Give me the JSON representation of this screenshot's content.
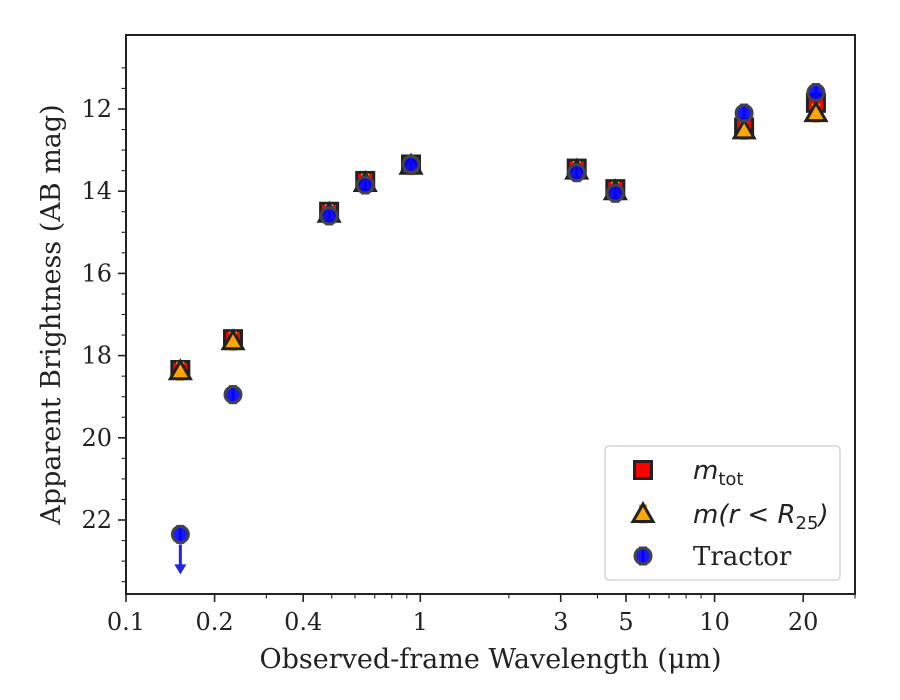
{
  "chart_data": {
    "type": "scatter",
    "xlabel": "Observed-frame Wavelength (μm)",
    "ylabel": "Apparent Brightness (AB mag)",
    "x_scale": "log",
    "xlim": [
      0.1,
      30
    ],
    "ylim": [
      23.8,
      10.2
    ],
    "y_inverted": true,
    "x_ticks": [
      {
        "value": 0.1,
        "label": "0.1"
      },
      {
        "value": 0.2,
        "label": "0.2"
      },
      {
        "value": 0.4,
        "label": "0.4"
      },
      {
        "value": 1,
        "label": "1"
      },
      {
        "value": 3,
        "label": "3"
      },
      {
        "value": 5,
        "label": "5"
      },
      {
        "value": 10,
        "label": "10"
      },
      {
        "value": 20,
        "label": "20"
      }
    ],
    "y_ticks": [
      {
        "value": 12,
        "label": "12"
      },
      {
        "value": 14,
        "label": "14"
      },
      {
        "value": 16,
        "label": "16"
      },
      {
        "value": 18,
        "label": "18"
      },
      {
        "value": 20,
        "label": "20"
      },
      {
        "value": 22,
        "label": "22"
      }
    ],
    "legend_position": "lower-right",
    "series": [
      {
        "name": "m_tot",
        "legend_main": "m",
        "legend_sub": "tot",
        "marker": "square",
        "color": "#ff0000",
        "edge_color": "#222222",
        "errorbar_color": "#dd0000",
        "x": [
          0.153,
          0.231,
          0.49,
          0.65,
          0.93,
          3.4,
          4.6,
          12.6,
          22.1
        ],
        "y": [
          18.35,
          17.6,
          14.5,
          13.75,
          13.35,
          13.45,
          13.95,
          12.45,
          11.85
        ]
      },
      {
        "name": "m(r<R25)",
        "legend_main": "m(r < R",
        "legend_sub": "25",
        "legend_end": ")",
        "marker": "triangle",
        "color": "#ffa500",
        "edge_color": "#222222",
        "errorbar_color": "#f0a000",
        "x": [
          0.153,
          0.231,
          0.49,
          0.65,
          0.93,
          3.4,
          4.6,
          12.6,
          22.1
        ],
        "y": [
          18.38,
          17.65,
          14.55,
          13.8,
          13.38,
          13.5,
          14.0,
          12.52,
          12.1
        ]
      },
      {
        "name": "Tractor",
        "legend_main": "Tractor",
        "marker": "circle",
        "color": "#0000ff",
        "edge_color": "#444444",
        "errorbar_color": "#2222ee",
        "x": [
          0.153,
          0.231,
          0.49,
          0.65,
          0.93,
          3.4,
          4.6,
          12.6,
          22.1
        ],
        "y": [
          22.35,
          18.95,
          14.6,
          13.85,
          13.35,
          13.55,
          14.05,
          12.1,
          11.6
        ],
        "upper_limit_index": 0
      }
    ]
  }
}
